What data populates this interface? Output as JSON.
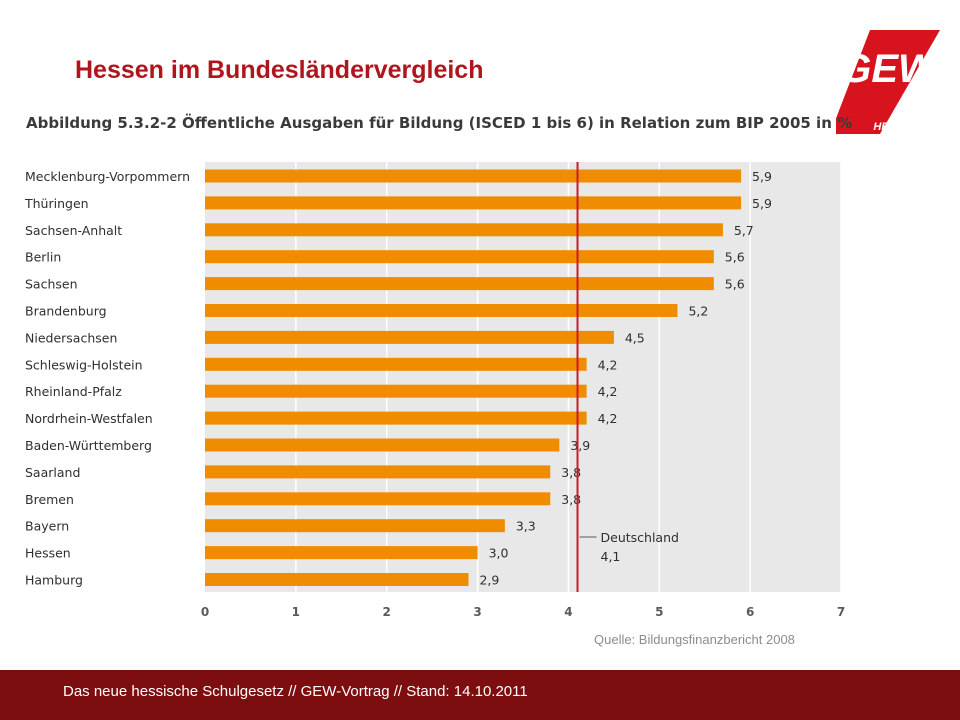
{
  "slide": {
    "title": "Hessen im Bundesländervergleich"
  },
  "logo": {
    "text": "GEW",
    "subtext": "HESSEN",
    "color": "#d7141e"
  },
  "chart_data": {
    "type": "bar",
    "orientation": "horizontal",
    "title": "Abbildung 5.3.2-2 Öffentliche Ausgaben für Bildung (ISCED 1 bis 6) in Relation zum BIP 2005 in %",
    "categories": [
      "Mecklenburg-Vorpommern",
      "Thüringen",
      "Sachsen-Anhalt",
      "Berlin",
      "Sachsen",
      "Brandenburg",
      "Niedersachsen",
      "Schleswig-Holstein",
      "Rheinland-Pfalz",
      "Nordrhein-Westfalen",
      "Baden-Württemberg",
      "Saarland",
      "Bremen",
      "Bayern",
      "Hessen",
      "Hamburg"
    ],
    "values": [
      5.9,
      5.9,
      5.7,
      5.6,
      5.6,
      5.2,
      4.5,
      4.2,
      4.2,
      4.2,
      3.9,
      3.8,
      3.8,
      3.3,
      3.0,
      2.9
    ],
    "value_labels": [
      "5,9",
      "5,9",
      "5,7",
      "5,6",
      "5,6",
      "5,2",
      "4,5",
      "4,2",
      "4,2",
      "4,2",
      "3,9",
      "3,8",
      "3,8",
      "3,3",
      "3,0",
      "2,9"
    ],
    "xlim": [
      0,
      7
    ],
    "x_ticks": [
      "0",
      "1",
      "2",
      "3",
      "4",
      "5",
      "6",
      "7"
    ],
    "grid": true,
    "reference_line": {
      "value": 4.1,
      "label": "Deutschland",
      "value_label": "4,1",
      "color": "#cc1a2c"
    },
    "bar_color": "#f08c00",
    "plot_background": "#e8e8e8"
  },
  "source": {
    "text": "Quelle: Bildungsfinanzbericht 2008"
  },
  "footer": {
    "text": "Das neue hessische Schulgesetz //  GEW-Vortrag  // Stand: 14.10.2011"
  }
}
